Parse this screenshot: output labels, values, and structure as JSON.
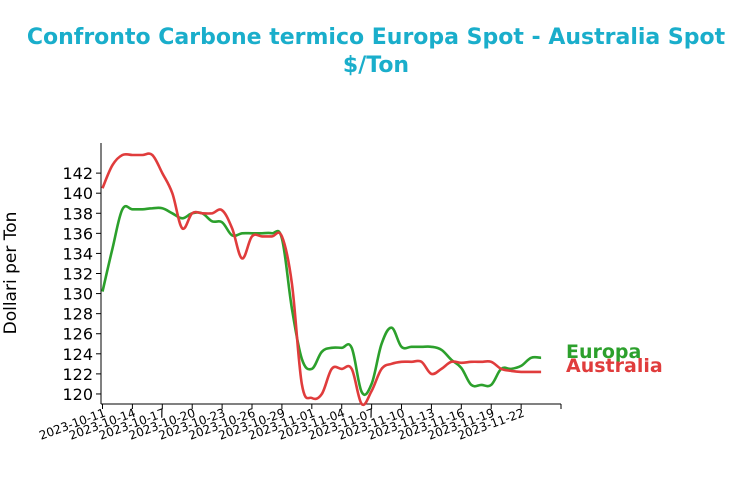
{
  "chart_data": {
    "type": "line",
    "title_line1": "Confronto Carbone termico Europa Spot - Australia Spot",
    "title_line2": "$/Ton",
    "xlabel": "",
    "ylabel": "Dollari per Ton",
    "ylim": [
      119,
      145
    ],
    "xlim": [
      "2023-10-11",
      "2023-11-26"
    ],
    "yticks": [
      120,
      122,
      124,
      126,
      128,
      130,
      132,
      134,
      136,
      138,
      140,
      142
    ],
    "xticks": [
      "2023-10-11",
      "2023-10-14",
      "2023-10-17",
      "2023-10-20",
      "2023-10-23",
      "2023-10-26",
      "2023-10-29",
      "2023-11-01",
      "2023-11-04",
      "2023-11-07",
      "2023-11-10",
      "2023-11-13",
      "2023-11-16",
      "2023-11-19",
      "2023-11-22"
    ],
    "grid": false,
    "legend": "right, at series end",
    "series": [
      {
        "name": "Europa",
        "color": "#2ca02c",
        "points": [
          [
            "2023-10-11",
            130.2
          ],
          [
            "2023-10-12",
            134.5
          ],
          [
            "2023-10-13",
            138.4
          ],
          [
            "2023-10-14",
            138.4
          ],
          [
            "2023-10-15",
            138.4
          ],
          [
            "2023-10-16",
            138.5
          ],
          [
            "2023-10-17",
            138.5
          ],
          [
            "2023-10-18",
            138.0
          ],
          [
            "2023-10-19",
            137.5
          ],
          [
            "2023-10-20",
            138.0
          ],
          [
            "2023-10-21",
            138.0
          ],
          [
            "2023-10-22",
            137.2
          ],
          [
            "2023-10-23",
            137.1
          ],
          [
            "2023-10-24",
            135.8
          ],
          [
            "2023-10-25",
            136.0
          ],
          [
            "2023-10-26",
            136.0
          ],
          [
            "2023-10-27",
            136.0
          ],
          [
            "2023-10-28",
            136.0
          ],
          [
            "2023-10-29",
            135.5
          ],
          [
            "2023-10-30",
            128.5
          ],
          [
            "2023-10-31",
            123.5
          ],
          [
            "2023-11-01",
            122.5
          ],
          [
            "2023-11-02",
            124.2
          ],
          [
            "2023-11-03",
            124.6
          ],
          [
            "2023-11-04",
            124.6
          ],
          [
            "2023-11-05",
            124.6
          ],
          [
            "2023-11-06",
            120.2
          ],
          [
            "2023-11-07",
            121.0
          ],
          [
            "2023-11-08",
            125.0
          ],
          [
            "2023-11-09",
            126.6
          ],
          [
            "2023-11-10",
            124.7
          ],
          [
            "2023-11-11",
            124.7
          ],
          [
            "2023-11-12",
            124.7
          ],
          [
            "2023-11-13",
            124.7
          ],
          [
            "2023-11-14",
            124.4
          ],
          [
            "2023-11-15",
            123.4
          ],
          [
            "2023-11-16",
            122.6
          ],
          [
            "2023-11-17",
            120.9
          ],
          [
            "2023-11-18",
            120.9
          ],
          [
            "2023-11-19",
            120.9
          ],
          [
            "2023-11-20",
            122.5
          ],
          [
            "2023-11-21",
            122.5
          ],
          [
            "2023-11-22",
            122.8
          ],
          [
            "2023-11-23",
            123.6
          ],
          [
            "2023-11-24",
            123.6
          ]
        ]
      },
      {
        "name": "Australia",
        "color": "#e03c3c",
        "points": [
          [
            "2023-10-11",
            140.5
          ],
          [
            "2023-10-12",
            142.8
          ],
          [
            "2023-10-13",
            143.8
          ],
          [
            "2023-10-14",
            143.8
          ],
          [
            "2023-10-15",
            143.8
          ],
          [
            "2023-10-16",
            143.8
          ],
          [
            "2023-10-17",
            142.0
          ],
          [
            "2023-10-18",
            140.0
          ],
          [
            "2023-10-19",
            136.5
          ],
          [
            "2023-10-20",
            138.0
          ],
          [
            "2023-10-21",
            138.0
          ],
          [
            "2023-10-22",
            138.0
          ],
          [
            "2023-10-23",
            138.3
          ],
          [
            "2023-10-24",
            136.5
          ],
          [
            "2023-10-25",
            133.5
          ],
          [
            "2023-10-26",
            135.7
          ],
          [
            "2023-10-27",
            135.7
          ],
          [
            "2023-10-28",
            135.7
          ],
          [
            "2023-10-29",
            135.7
          ],
          [
            "2023-10-30",
            131.0
          ],
          [
            "2023-10-31",
            121.0
          ],
          [
            "2023-11-01",
            119.6
          ],
          [
            "2023-11-02",
            120.0
          ],
          [
            "2023-11-03",
            122.5
          ],
          [
            "2023-11-04",
            122.5
          ],
          [
            "2023-11-05",
            122.5
          ],
          [
            "2023-11-06",
            119.0
          ],
          [
            "2023-11-07",
            120.3
          ],
          [
            "2023-11-08",
            122.5
          ],
          [
            "2023-11-09",
            123.0
          ],
          [
            "2023-11-10",
            123.2
          ],
          [
            "2023-11-11",
            123.2
          ],
          [
            "2023-11-12",
            123.2
          ],
          [
            "2023-11-13",
            122.0
          ],
          [
            "2023-11-14",
            122.5
          ],
          [
            "2023-11-15",
            123.2
          ],
          [
            "2023-11-16",
            123.1
          ],
          [
            "2023-11-17",
            123.2
          ],
          [
            "2023-11-18",
            123.2
          ],
          [
            "2023-11-19",
            123.2
          ],
          [
            "2023-11-20",
            122.5
          ],
          [
            "2023-11-21",
            122.3
          ],
          [
            "2023-11-22",
            122.2
          ],
          [
            "2023-11-23",
            122.2
          ],
          [
            "2023-11-24",
            122.2
          ]
        ]
      }
    ]
  }
}
